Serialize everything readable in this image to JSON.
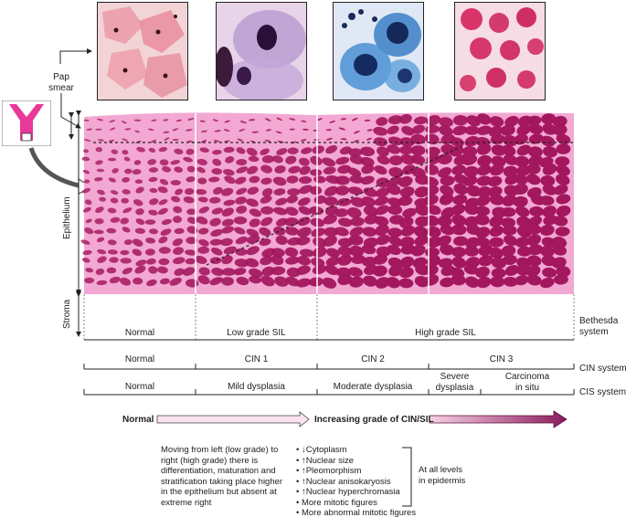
{
  "labels": {
    "pap_smear_line1": "Pap",
    "pap_smear_line2": "smear",
    "epithelium": "Epithelium",
    "stroma": "Stroma"
  },
  "bethesda": {
    "system_line1": "Bethesda",
    "system_line2": "system",
    "cells": [
      "Normal",
      "Low grade SIL",
      "High grade SIL"
    ]
  },
  "cin": {
    "system": "CIN system",
    "cells": [
      "Normal",
      "CIN 1",
      "CIN 2",
      "CIN 3"
    ]
  },
  "cis": {
    "system": "CIS system",
    "cells": [
      "Normal",
      "Mild dysplasia",
      "Moderate dysplasia",
      "Severe",
      "dysplasia",
      "Carcinoma",
      "in situ"
    ]
  },
  "gradient": {
    "normal": "Normal",
    "increasing": "Increasing grade of CIN/SIL"
  },
  "description": {
    "lines": [
      "Moving from left (low grade) to",
      "right (high grade) there is",
      "differentiation, maturation and",
      "stratification taking place higher",
      "in the epithelium but absent at",
      "extreme right"
    ]
  },
  "features": {
    "items": [
      "• ↓Cytoplasm",
      "• ↑Nuclear size",
      "• ↑Pleomorphism",
      "• ↑Nuclear anisokaryosis",
      "• ↑Nuclear hyperchromasia",
      "• More mitotic figures",
      "• More abnormal mitotic figures"
    ],
    "bracket_line1": "At all levels",
    "bracket_line2": "in epidermis"
  },
  "colors": {
    "epithelium": "#f2a8d2",
    "nucleus": "#a3175e",
    "arrow_dark": "#8b1a5e",
    "arrow_light": "#f4c4dc"
  }
}
